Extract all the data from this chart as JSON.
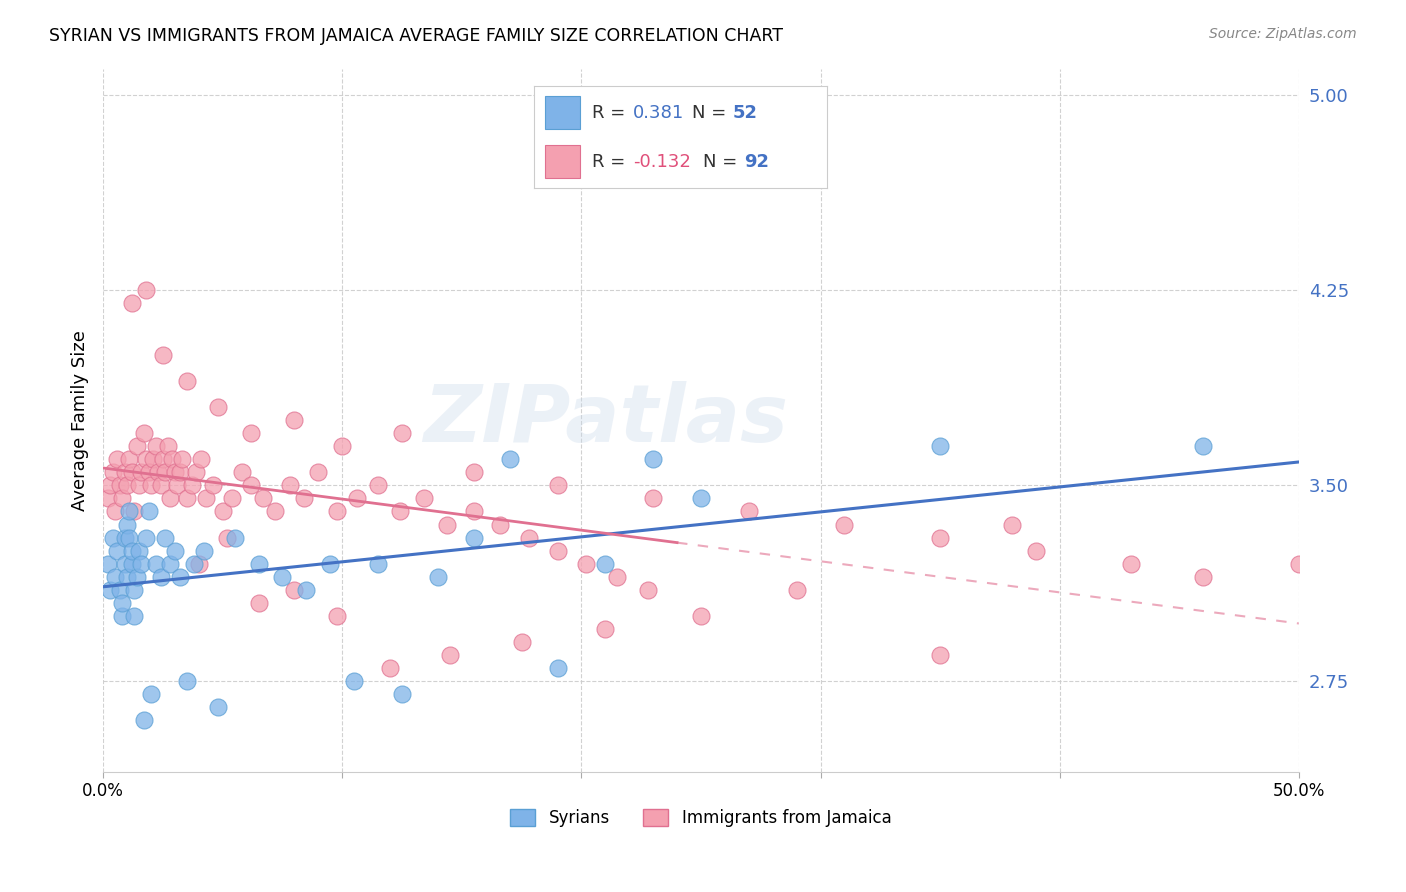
{
  "title": "SYRIAN VS IMMIGRANTS FROM JAMAICA AVERAGE FAMILY SIZE CORRELATION CHART",
  "source": "Source: ZipAtlas.com",
  "ylabel": "Average Family Size",
  "xlim": [
    0.0,
    0.5
  ],
  "ylim": [
    2.4,
    5.1
  ],
  "yticks": [
    2.75,
    3.5,
    4.25,
    5.0
  ],
  "xticks": [
    0.0,
    0.1,
    0.2,
    0.3,
    0.4,
    0.5
  ],
  "xtick_labels": [
    "0.0%",
    "",
    "",
    "",
    "",
    "50.0%"
  ],
  "background_color": "#ffffff",
  "grid_color": "#cccccc",
  "syrians_color": "#7fb3e8",
  "syrians_edge_color": "#5a9fd4",
  "jamaica_color": "#f4a0b0",
  "jamaica_edge_color": "#e07090",
  "trend_syrian_color": "#4472c4",
  "trend_jamaica_color": "#e07090",
  "watermark": "ZIPatlas",
  "legend_R_syrian": "0.381",
  "legend_N_syrian": "52",
  "legend_R_jamaica": "-0.132",
  "legend_N_jamaica": "92",
  "syrians_x": [
    0.002,
    0.003,
    0.004,
    0.005,
    0.006,
    0.007,
    0.008,
    0.008,
    0.009,
    0.009,
    0.01,
    0.01,
    0.011,
    0.011,
    0.012,
    0.012,
    0.013,
    0.013,
    0.014,
    0.015,
    0.016,
    0.017,
    0.018,
    0.019,
    0.02,
    0.022,
    0.024,
    0.026,
    0.028,
    0.03,
    0.032,
    0.035,
    0.038,
    0.042,
    0.048,
    0.055,
    0.065,
    0.075,
    0.085,
    0.095,
    0.105,
    0.115,
    0.125,
    0.14,
    0.155,
    0.17,
    0.19,
    0.21,
    0.23,
    0.25,
    0.35,
    0.46
  ],
  "syrians_y": [
    3.2,
    3.1,
    3.3,
    3.15,
    3.25,
    3.1,
    3.0,
    3.05,
    3.3,
    3.2,
    3.15,
    3.35,
    3.4,
    3.3,
    3.2,
    3.25,
    3.1,
    3.0,
    3.15,
    3.25,
    3.2,
    2.6,
    3.3,
    3.4,
    2.7,
    3.2,
    3.15,
    3.3,
    3.2,
    3.25,
    3.15,
    2.75,
    3.2,
    3.25,
    2.65,
    3.3,
    3.2,
    3.15,
    3.1,
    3.2,
    2.75,
    3.2,
    2.7,
    3.15,
    3.3,
    3.6,
    2.8,
    3.2,
    3.6,
    3.45,
    3.65,
    3.65
  ],
  "jamaica_x": [
    0.002,
    0.003,
    0.004,
    0.005,
    0.006,
    0.007,
    0.008,
    0.009,
    0.01,
    0.011,
    0.012,
    0.013,
    0.014,
    0.015,
    0.016,
    0.017,
    0.018,
    0.019,
    0.02,
    0.021,
    0.022,
    0.023,
    0.024,
    0.025,
    0.026,
    0.027,
    0.028,
    0.029,
    0.03,
    0.031,
    0.032,
    0.033,
    0.035,
    0.037,
    0.039,
    0.041,
    0.043,
    0.046,
    0.05,
    0.054,
    0.058,
    0.062,
    0.067,
    0.072,
    0.078,
    0.084,
    0.09,
    0.098,
    0.106,
    0.115,
    0.124,
    0.134,
    0.144,
    0.155,
    0.166,
    0.178,
    0.19,
    0.202,
    0.215,
    0.228,
    0.012,
    0.018,
    0.025,
    0.035,
    0.048,
    0.062,
    0.08,
    0.1,
    0.125,
    0.155,
    0.19,
    0.23,
    0.27,
    0.31,
    0.35,
    0.39,
    0.43,
    0.46,
    0.38,
    0.35,
    0.29,
    0.25,
    0.21,
    0.175,
    0.145,
    0.12,
    0.098,
    0.08,
    0.065,
    0.052,
    0.04,
    0.5
  ],
  "jamaica_y": [
    3.45,
    3.5,
    3.55,
    3.4,
    3.6,
    3.5,
    3.45,
    3.55,
    3.5,
    3.6,
    3.55,
    3.4,
    3.65,
    3.5,
    3.55,
    3.7,
    3.6,
    3.55,
    3.5,
    3.6,
    3.65,
    3.55,
    3.5,
    3.6,
    3.55,
    3.65,
    3.45,
    3.6,
    3.55,
    3.5,
    3.55,
    3.6,
    3.45,
    3.5,
    3.55,
    3.6,
    3.45,
    3.5,
    3.4,
    3.45,
    3.55,
    3.5,
    3.45,
    3.4,
    3.5,
    3.45,
    3.55,
    3.4,
    3.45,
    3.5,
    3.4,
    3.45,
    3.35,
    3.4,
    3.35,
    3.3,
    3.25,
    3.2,
    3.15,
    3.1,
    4.2,
    4.25,
    4.0,
    3.9,
    3.8,
    3.7,
    3.75,
    3.65,
    3.7,
    3.55,
    3.5,
    3.45,
    3.4,
    3.35,
    3.3,
    3.25,
    3.2,
    3.15,
    3.35,
    2.85,
    3.1,
    3.0,
    2.95,
    2.9,
    2.85,
    2.8,
    3.0,
    3.1,
    3.05,
    3.3,
    3.2,
    3.2
  ]
}
